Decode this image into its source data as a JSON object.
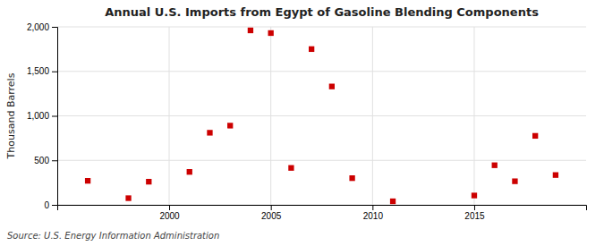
{
  "chart_data": {
    "type": "scatter",
    "title": "Annual U.S. Imports from Egypt of Gasoline Blending Components",
    "ylabel": "Thousand Barrels",
    "source": "Source: U.S. Energy Information Administration",
    "x": [
      1996,
      1998,
      1999,
      2001,
      2002,
      2003,
      2004,
      2005,
      2006,
      2007,
      2008,
      2009,
      2011,
      2015,
      2016,
      2017,
      2018,
      2019
    ],
    "values": [
      270,
      75,
      260,
      370,
      810,
      890,
      1960,
      1930,
      415,
      1750,
      1330,
      300,
      40,
      105,
      445,
      265,
      775,
      335
    ],
    "color": "#cc0000",
    "marker": "square",
    "xlim": [
      1994.5,
      2020.5
    ],
    "ylim": [
      0,
      2000
    ],
    "xticks": [
      2000,
      2005,
      2010,
      2015
    ],
    "yticks": [
      0,
      500,
      {
        "value": 1000,
        "label": "1,000"
      },
      {
        "value": 1500,
        "label": "1,500"
      },
      {
        "value": 2000,
        "label": "2,000"
      }
    ],
    "grid": true
  }
}
